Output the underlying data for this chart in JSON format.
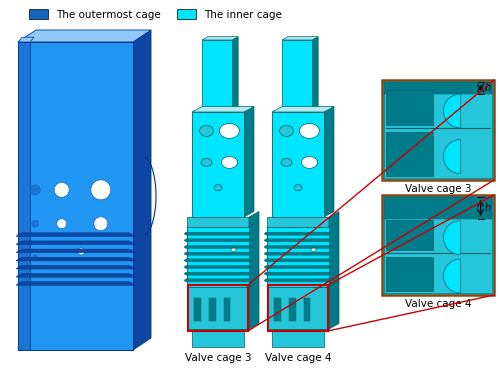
{
  "legend_items": [
    {
      "label": "The outermost cage",
      "color": "#1565C0"
    },
    {
      "label": "The inner cage",
      "color": "#00E5FF"
    }
  ],
  "labels": {
    "valve_cage_3_bottom": "Valve cage 3",
    "valve_cage_4_bottom": "Valve cage 4",
    "valve_cage_3_right": "Valve cage 3",
    "valve_cage_4_right": "Valve cage 4"
  },
  "colors": {
    "outer_blue": "#2196F3",
    "outer_blue_dark": "#0D47A1",
    "outer_blue_mid": "#1976D2",
    "outer_blue_light": "#90CAF9",
    "inner_cyan": "#00E5FF",
    "inner_cyan_dark": "#007B8A",
    "inner_cyan_mid": "#26C6DA",
    "inner_cyan_light": "#B2EBF2",
    "inner_cyan_edge": "#006064",
    "red_box": "#CC0000",
    "background": "#FFFFFF"
  },
  "h_annotation": "h"
}
